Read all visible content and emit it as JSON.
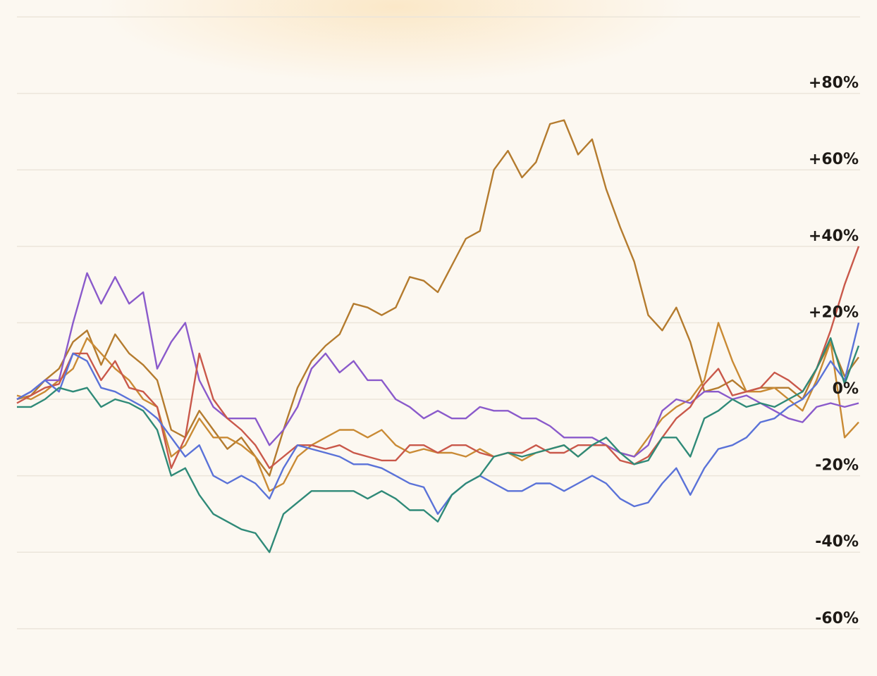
{
  "chart_data": {
    "type": "line",
    "ylim": [
      -72,
      100
    ],
    "yticks": [
      {
        "value": 80,
        "label": "+80%"
      },
      {
        "value": 60,
        "label": "+60%"
      },
      {
        "value": 40,
        "label": "+40%"
      },
      {
        "value": 20,
        "label": "+20%"
      },
      {
        "value": 0,
        "label": "0%"
      },
      {
        "value": -20,
        "label": "-20%"
      },
      {
        "value": -40,
        "label": "-40%"
      },
      {
        "value": -60,
        "label": "-60%"
      }
    ],
    "grid": true,
    "series": [
      {
        "color": "#b47b2e",
        "values": [
          0,
          1,
          5,
          8,
          15,
          18,
          9,
          17,
          12,
          9,
          5,
          -8,
          -10,
          -3,
          -8,
          -13,
          -10,
          -15,
          -20,
          -8,
          3,
          10,
          14,
          17,
          25,
          24,
          22,
          24,
          32,
          31,
          28,
          35,
          42,
          44,
          60,
          65,
          58,
          62,
          72,
          73,
          64,
          68,
          55,
          45,
          36,
          22,
          18,
          24,
          15,
          2,
          3,
          5,
          2,
          3,
          3,
          3,
          0,
          8,
          15,
          6,
          11
        ]
      },
      {
        "color": "#c98a34",
        "values": [
          1,
          0,
          2,
          5,
          8,
          16,
          12,
          8,
          5,
          0,
          -2,
          -15,
          -12,
          -5,
          -10,
          -10,
          -12,
          -15,
          -24,
          -22,
          -15,
          -12,
          -10,
          -8,
          -8,
          -10,
          -8,
          -12,
          -14,
          -13,
          -14,
          -14,
          -15,
          -13,
          -15,
          -14,
          -16,
          -14,
          -13,
          -12,
          -15,
          -12,
          -12,
          -14,
          -15,
          -10,
          -5,
          -2,
          0,
          5,
          20,
          10,
          2,
          2,
          3,
          0,
          -3,
          5,
          15,
          -10,
          -6
        ]
      },
      {
        "color": "#8a5acb",
        "values": [
          0,
          2,
          5,
          5,
          20,
          33,
          25,
          32,
          25,
          28,
          8,
          15,
          20,
          5,
          -2,
          -5,
          -5,
          -5,
          -12,
          -8,
          -2,
          8,
          12,
          7,
          10,
          5,
          5,
          0,
          -2,
          -5,
          -3,
          -5,
          -5,
          -2,
          -3,
          -3,
          -5,
          -5,
          -7,
          -10,
          -10,
          -10,
          -12,
          -14,
          -15,
          -12,
          -3,
          0,
          -1,
          2,
          2,
          0,
          1,
          -1,
          -3,
          -5,
          -6,
          -2,
          -1,
          -2,
          -1
        ]
      },
      {
        "color": "#c9584a",
        "values": [
          -1,
          1,
          3,
          4,
          12,
          12,
          5,
          10,
          3,
          2,
          -2,
          -18,
          -10,
          12,
          0,
          -5,
          -8,
          -12,
          -18,
          -15,
          -12,
          -12,
          -13,
          -12,
          -14,
          -15,
          -16,
          -16,
          -12,
          -12,
          -14,
          -12,
          -12,
          -14,
          -15,
          -14,
          -14,
          -12,
          -14,
          -14,
          -12,
          -12,
          -12,
          -16,
          -17,
          -15,
          -10,
          -5,
          -2,
          4,
          8,
          1,
          2,
          3,
          7,
          5,
          2,
          8,
          18,
          30,
          40
        ]
      },
      {
        "color": "#5a72d8",
        "values": [
          0,
          2,
          5,
          2,
          12,
          10,
          3,
          2,
          0,
          -2,
          -5,
          -10,
          -15,
          -12,
          -20,
          -22,
          -20,
          -22,
          -26,
          -18,
          -12,
          -13,
          -14,
          -15,
          -17,
          -17,
          -18,
          -20,
          -22,
          -23,
          -30,
          -25,
          -22,
          -20,
          -22,
          -24,
          -24,
          -22,
          -22,
          -24,
          -22,
          -20,
          -22,
          -26,
          -28,
          -27,
          -22,
          -18,
          -25,
          -18,
          -13,
          -12,
          -10,
          -6,
          -5,
          -2,
          0,
          4,
          10,
          5,
          20
        ]
      },
      {
        "color": "#2f8a78",
        "values": [
          -2,
          -2,
          0,
          3,
          2,
          3,
          -2,
          0,
          -1,
          -3,
          -8,
          -20,
          -18,
          -25,
          -30,
          -32,
          -34,
          -35,
          -40,
          -30,
          -27,
          -24,
          -24,
          -24,
          -24,
          -26,
          -24,
          -26,
          -29,
          -29,
          -32,
          -25,
          -22,
          -20,
          -15,
          -14,
          -15,
          -14,
          -13,
          -12,
          -15,
          -12,
          -10,
          -14,
          -17,
          -16,
          -10,
          -10,
          -15,
          -5,
          -3,
          0,
          -2,
          -1,
          -2,
          0,
          2,
          8,
          16,
          4,
          14
        ]
      }
    ]
  }
}
